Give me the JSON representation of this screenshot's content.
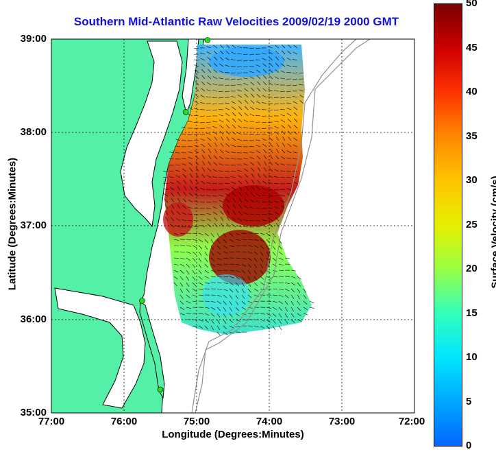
{
  "title": "Southern Mid-Atlantic Raw Velocities 2009/02/19 2000 GMT",
  "axes": {
    "xlabel": "Longitude (Degrees:Minutes)",
    "ylabel": "Latitude (Degrees:Minutes)",
    "x_ticks": [
      "77:00",
      "76:00",
      "75:00",
      "74:00",
      "73:00",
      "72:00"
    ],
    "y_ticks": [
      "39:00",
      "38:00",
      "37:00",
      "36:00",
      "35:00"
    ],
    "grid": true,
    "xlim": [
      -77,
      -72
    ],
    "ylim": [
      35,
      39
    ]
  },
  "colorbar": {
    "label": "Surface Velocity (cm/s)",
    "ticks": [
      "50",
      "45",
      "40",
      "35",
      "30",
      "25",
      "20",
      "15",
      "10",
      "5",
      "0"
    ],
    "range": [
      0,
      50
    ],
    "colormap": [
      "#0066ff",
      "#00a8ff",
      "#00e6ff",
      "#33ffbb",
      "#99ff44",
      "#e6f000",
      "#ffc400",
      "#ff8800",
      "#ff3300",
      "#cc0000",
      "#7a0000"
    ]
  },
  "colors": {
    "land": "#55f0a8",
    "ocean": "#ffffff",
    "coastline": "#000000",
    "bathymetry": "#909090",
    "title": "#1010e0",
    "station": "#22dd22"
  },
  "stations": [
    {
      "lon": -74.85,
      "lat": 38.99
    },
    {
      "lon": -75.15,
      "lat": 38.22
    },
    {
      "lon": -75.75,
      "lat": 36.2
    },
    {
      "lon": -75.5,
      "lat": 35.25
    }
  ]
}
